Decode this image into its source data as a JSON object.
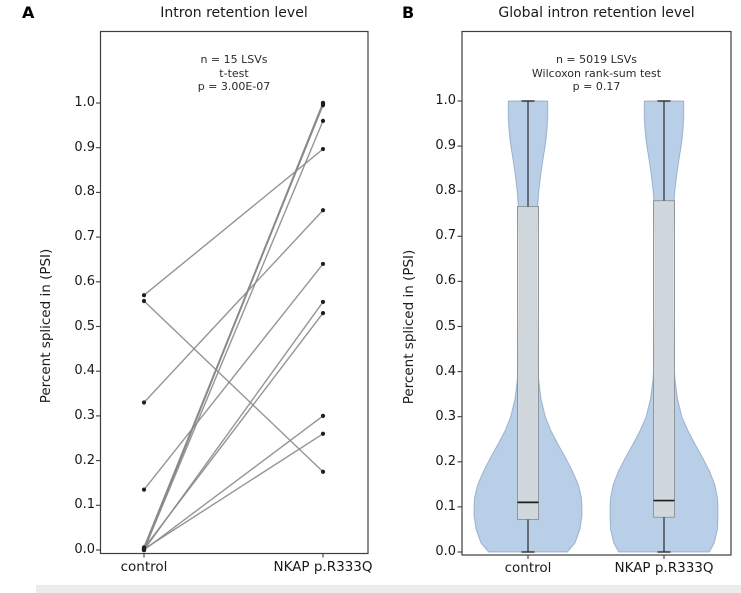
{
  "figure": {
    "background": "#ffffff",
    "artifact_strip_color": "#ececec",
    "panels": [
      {
        "letter": "A"
      },
      {
        "letter": "B"
      }
    ]
  },
  "chart_data": [
    {
      "type": "line",
      "subtype": "paired-slope",
      "title": "Intron retention level",
      "ylabel": "Percent spliced in (PSI)",
      "categories": [
        "control",
        "NKAP p.R333Q"
      ],
      "ylim": [
        0.0,
        1.0
      ],
      "yticks": [
        0.0,
        0.1,
        0.2,
        0.3,
        0.4,
        0.5,
        0.6,
        0.7,
        0.8,
        0.9,
        1.0
      ],
      "grid": false,
      "annotation": [
        "n = 15 LSVs",
        "t-test",
        "p = 3.00E-07"
      ],
      "stats": {
        "n_lsvs": 15,
        "test": "t-test",
        "p_value": "3.00E-07"
      },
      "pairs": [
        [
          0.0,
          1.0
        ],
        [
          0.003,
          1.0
        ],
        [
          0.0,
          0.997
        ],
        [
          0.006,
          0.995
        ],
        [
          0.002,
          1.0
        ],
        [
          0.005,
          0.998
        ],
        [
          0.0,
          0.96
        ],
        [
          0.57,
          0.897
        ],
        [
          0.33,
          0.76
        ],
        [
          0.135,
          0.64
        ],
        [
          0.0,
          0.555
        ],
        [
          0.004,
          0.53
        ],
        [
          0.0,
          0.3
        ],
        [
          0.002,
          0.26
        ],
        [
          0.557,
          0.175
        ]
      ],
      "line_color": "#8a8a8a",
      "marker_color": "#1f1f1f",
      "spine_color": "#3d3d3d"
    },
    {
      "type": "violin",
      "subtype": "violin-with-box",
      "title": "Global intron retention level",
      "ylabel": "Percent spliced in (PSI)",
      "categories": [
        "control",
        "NKAP p.R333Q"
      ],
      "ylim": [
        0.0,
        1.0
      ],
      "yticks": [
        0.0,
        0.1,
        0.2,
        0.3,
        0.4,
        0.5,
        0.6,
        0.7,
        0.8,
        0.9,
        1.0
      ],
      "grid": false,
      "annotation": [
        "n = 5019 LSVs",
        "Wilcoxon rank-sum test",
        "p = 0.17"
      ],
      "stats": {
        "n_lsvs": 5019,
        "test": "Wilcoxon rank-sum test",
        "p_value": "0.17"
      },
      "groups": [
        {
          "name": "control",
          "box": {
            "whisker_low": 0.0,
            "q1": 0.072,
            "median": 0.11,
            "q3": 0.766,
            "whisker_high": 1.0
          },
          "density_psi": [
            0.0,
            0.02,
            0.05,
            0.08,
            0.1,
            0.12,
            0.15,
            0.18,
            0.21,
            0.24,
            0.27,
            0.3,
            0.34,
            0.38,
            0.42,
            0.47,
            0.52,
            0.58,
            0.64,
            0.7,
            0.75,
            0.8,
            0.84,
            0.88,
            0.91,
            0.94,
            0.97,
            1.0
          ],
          "density": [
            0.73,
            0.87,
            0.96,
            1.0,
            1.0,
            0.99,
            0.93,
            0.82,
            0.69,
            0.55,
            0.42,
            0.32,
            0.24,
            0.2,
            0.18,
            0.17,
            0.16,
            0.155,
            0.155,
            0.16,
            0.17,
            0.2,
            0.24,
            0.29,
            0.33,
            0.355,
            0.365,
            0.365
          ]
        },
        {
          "name": "NKAP p.R333Q",
          "box": {
            "whisker_low": 0.0,
            "q1": 0.077,
            "median": 0.114,
            "q3": 0.779,
            "whisker_high": 1.0
          },
          "density_psi": [
            0.0,
            0.02,
            0.05,
            0.08,
            0.1,
            0.12,
            0.15,
            0.18,
            0.21,
            0.24,
            0.27,
            0.3,
            0.34,
            0.38,
            0.42,
            0.47,
            0.52,
            0.58,
            0.64,
            0.7,
            0.75,
            0.8,
            0.84,
            0.88,
            0.91,
            0.94,
            0.97,
            1.0
          ],
          "density": [
            0.84,
            0.93,
            0.99,
            1.0,
            1.0,
            0.99,
            0.94,
            0.84,
            0.71,
            0.57,
            0.44,
            0.33,
            0.25,
            0.205,
            0.185,
            0.17,
            0.16,
            0.155,
            0.155,
            0.16,
            0.17,
            0.2,
            0.24,
            0.29,
            0.33,
            0.355,
            0.365,
            0.365
          ]
        }
      ],
      "violin_fill": "#b9cfe7",
      "violin_edge": "#6e8cb0",
      "box_fill": "#d7dadb",
      "box_edge": "#90969a",
      "median_color": "#1c1c1c",
      "whisker_color": "#2a2a2a",
      "spine_color": "#3d3d3d"
    }
  ]
}
